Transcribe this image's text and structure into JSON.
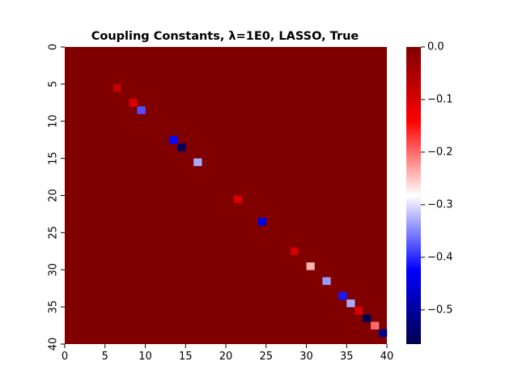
{
  "chart_data": {
    "type": "heatmap",
    "title": "Coupling Constants, λ=1E0, LASSO, True",
    "xlabel": "",
    "ylabel": "",
    "size": [
      40,
      40
    ],
    "xlim": [
      0,
      40
    ],
    "ylim": [
      40,
      0
    ],
    "x_ticks": [
      0,
      5,
      10,
      15,
      20,
      25,
      30,
      35,
      40
    ],
    "y_ticks": [
      0,
      5,
      10,
      15,
      20,
      25,
      30,
      35,
      40
    ],
    "background_value": 0.0,
    "cells": [
      {
        "x": 6,
        "y": 5,
        "value": -0.08
      },
      {
        "x": 8,
        "y": 7,
        "value": -0.1
      },
      {
        "x": 9,
        "y": 8,
        "value": -0.38
      },
      {
        "x": 13,
        "y": 12,
        "value": -0.42
      },
      {
        "x": 14,
        "y": 13,
        "value": -0.55
      },
      {
        "x": 16,
        "y": 15,
        "value": -0.33
      },
      {
        "x": 21,
        "y": 20,
        "value": -0.1
      },
      {
        "x": 24,
        "y": 23,
        "value": -0.44
      },
      {
        "x": 28,
        "y": 27,
        "value": -0.09
      },
      {
        "x": 30,
        "y": 29,
        "value": -0.24
      },
      {
        "x": 32,
        "y": 31,
        "value": -0.34
      },
      {
        "x": 34,
        "y": 33,
        "value": -0.41
      },
      {
        "x": 35,
        "y": 34,
        "value": -0.33
      },
      {
        "x": 36,
        "y": 35,
        "value": -0.1
      },
      {
        "x": 37,
        "y": 36,
        "value": -0.56
      },
      {
        "x": 38,
        "y": 37,
        "value": -0.2
      },
      {
        "x": 39,
        "y": 38,
        "value": -0.52
      }
    ],
    "colorbar": {
      "colormap": "seismic",
      "vmin": -0.565,
      "vmax": 0.0,
      "ticks": [
        0.0,
        -0.1,
        -0.2,
        -0.3,
        -0.4,
        -0.5
      ],
      "tick_labels": [
        "0.0",
        "−0.1",
        "−0.2",
        "−0.3",
        "−0.4",
        "−0.5"
      ]
    },
    "grid": false,
    "legend": "none"
  }
}
